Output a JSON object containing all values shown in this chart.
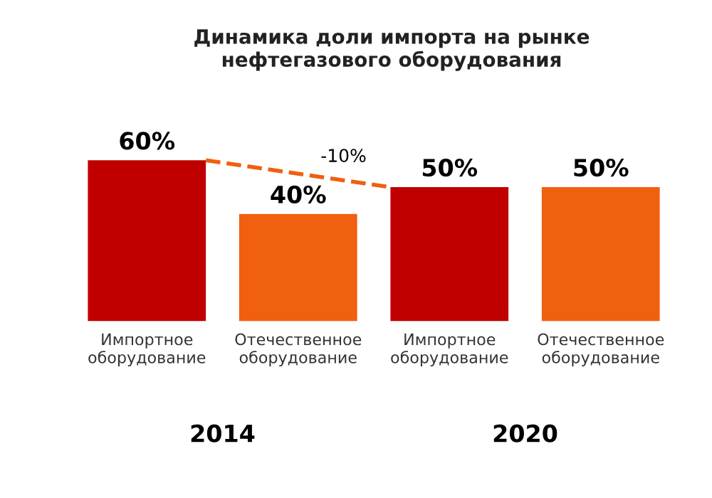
{
  "chart_data": {
    "type": "bar",
    "title": "Динамика доли импорта на рынке\nнефтегазового оборудования",
    "categories": [
      "Импортное\nоборудование",
      "Отечественное\nоборудование",
      "Импортное\nоборудование",
      "Отечественное\nоборудование"
    ],
    "values": [
      60,
      40,
      50,
      50
    ],
    "colors": [
      "#c00000",
      "#f06010",
      "#c00000",
      "#f06010"
    ],
    "value_labels": [
      "60%",
      "40%",
      "50%",
      "50%"
    ],
    "annotations": [
      "2014",
      "2020",
      "-10%"
    ],
    "grid": false,
    "legend": false
  }
}
